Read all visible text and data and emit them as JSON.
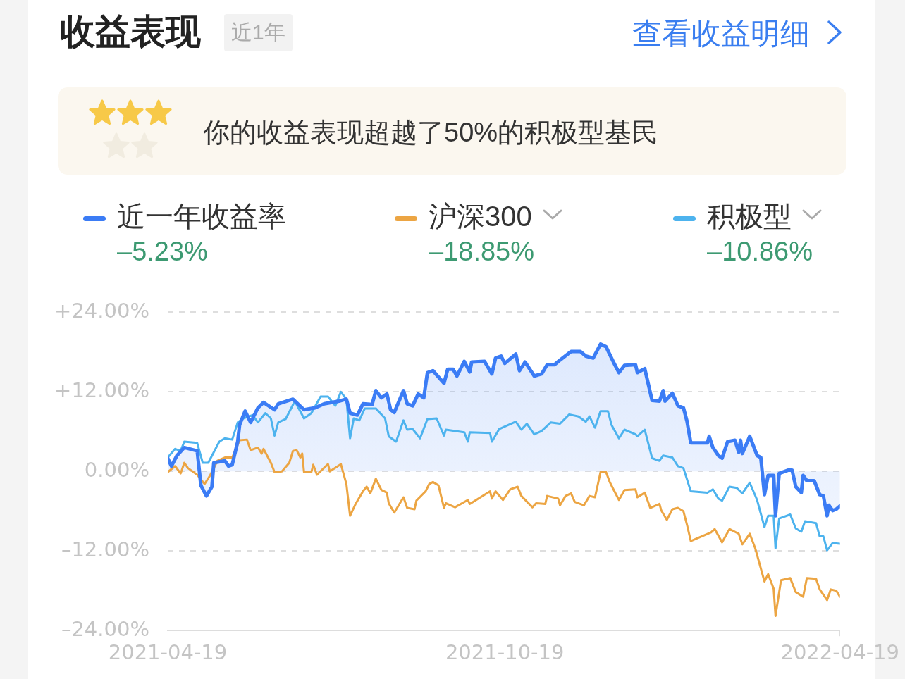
{
  "chart_data": {
    "type": "line",
    "title": "收益表现",
    "subtitle": "近1年",
    "annotations": [
      "查看收益明细",
      "你的收益表现超越了50%的积极型基民",
      "–5.23%",
      "–18.85%",
      "–10.86%"
    ],
    "xlim": [
      "2021-04-19",
      "2022-04-19"
    ],
    "xticks": [
      "2021-04-19",
      "2021-10-19",
      "2022-04-19"
    ],
    "ylim": [
      -24,
      24
    ],
    "yticks": [
      {
        "value": 24,
        "label": "+24.00%"
      },
      {
        "value": 12,
        "label": "+12.00%"
      },
      {
        "value": 0,
        "label": "0.00%"
      },
      {
        "value": -12,
        "label": "–12.00%"
      },
      {
        "value": -24,
        "label": "–24.00%"
      }
    ],
    "grid": "y",
    "legend": "top",
    "marker": "none",
    "line_style": "solid",
    "series": [
      {
        "name": "近一年收益率",
        "type": "area",
        "color": "#3b7cf5",
        "x": [
          "2021-04-19",
          "2021-04-21",
          "2021-04-24",
          "2021-04-28",
          "2021-05-05",
          "2021-05-07",
          "2021-05-10",
          "2021-05-13",
          "2021-05-14",
          "2021-05-20",
          "2021-05-22",
          "2021-05-24",
          "2021-05-27",
          "2021-05-28",
          "2021-05-31",
          "2021-06-03",
          "2021-06-07",
          "2021-06-10",
          "2021-06-16",
          "2021-06-18",
          "2021-06-26",
          "2021-07-02",
          "2021-07-08",
          "2021-07-13",
          "2021-07-21",
          "2021-07-25",
          "2021-07-27",
          "2021-07-31",
          "2021-08-03",
          "2021-08-08",
          "2021-08-10",
          "2021-08-13",
          "2021-08-16",
          "2021-08-18",
          "2021-08-20",
          "2021-08-25",
          "2021-08-27",
          "2021-08-30",
          "2021-09-02",
          "2021-09-05",
          "2021-09-07",
          "2021-09-10",
          "2021-09-16",
          "2021-09-18",
          "2021-09-21",
          "2021-09-23",
          "2021-09-27",
          "2021-09-30",
          "2021-10-01",
          "2021-10-08",
          "2021-10-12",
          "2021-10-14",
          "2021-10-17",
          "2021-10-19",
          "2021-10-25",
          "2021-10-27",
          "2021-10-30",
          "2021-11-04",
          "2021-11-08",
          "2021-11-11",
          "2021-11-15",
          "2021-11-18",
          "2021-11-24",
          "2021-11-29",
          "2021-12-02",
          "2021-12-06",
          "2021-12-10",
          "2021-12-13",
          "2021-12-17",
          "2021-12-20",
          "2021-12-23",
          "2021-12-29",
          "2021-12-30",
          "2022-01-03",
          "2022-01-07",
          "2022-01-11",
          "2022-01-13",
          "2022-01-14",
          "2022-01-18",
          "2022-01-21",
          "2022-01-24",
          "2022-01-26",
          "2022-01-28",
          "2022-02-06",
          "2022-02-07",
          "2022-02-09",
          "2022-02-12",
          "2022-02-14",
          "2022-02-17",
          "2022-02-21",
          "2022-02-23",
          "2022-02-24",
          "2022-02-25",
          "2022-03-01",
          "2022-03-05",
          "2022-03-07",
          "2022-03-09",
          "2022-03-11",
          "2022-03-14",
          "2022-03-15",
          "2022-03-17",
          "2022-03-22",
          "2022-03-24",
          "2022-03-26",
          "2022-03-29",
          "2022-03-30",
          "2022-04-01",
          "2022-04-05",
          "2022-04-08",
          "2022-04-10",
          "2022-04-12",
          "2022-04-13",
          "2022-04-15",
          "2022-04-17",
          "2022-04-19"
        ],
        "values": [
          2.0,
          0.8,
          2.4,
          3.6,
          3.1,
          -2.1,
          -3.7,
          -2.3,
          1.3,
          1.6,
          0.8,
          1.0,
          4.5,
          7.0,
          9.1,
          7.4,
          9.6,
          10.4,
          9.3,
          10.2,
          10.9,
          9.3,
          9.6,
          10.2,
          10.6,
          10.9,
          8.8,
          8.5,
          10.2,
          10.1,
          12.2,
          11.1,
          11.7,
          9.3,
          8.9,
          12.2,
          10.2,
          9.9,
          11.7,
          11.1,
          14.9,
          15.2,
          13.3,
          15.4,
          15.4,
          14.4,
          16.6,
          15.0,
          16.5,
          16.6,
          14.7,
          17.1,
          17.4,
          16.3,
          17.7,
          15.2,
          16.5,
          14.4,
          14.7,
          16.1,
          16.1,
          16.8,
          18.1,
          18.1,
          17.4,
          17.1,
          19.2,
          18.8,
          16.5,
          14.9,
          16.0,
          16.1,
          14.9,
          15.5,
          10.7,
          10.6,
          12.2,
          10.6,
          11.8,
          9.9,
          9.6,
          7.5,
          4.3,
          4.3,
          5.3,
          3.6,
          2.4,
          2.0,
          4.5,
          4.7,
          2.9,
          4.7,
          2.7,
          5.3,
          2.4,
          2.1,
          -3.5,
          -0.6,
          -0.6,
          -6.7,
          -0.3,
          0.2,
          0.2,
          -2.3,
          -3.2,
          -0.6,
          -1.4,
          -1.4,
          -3.5,
          -3.7,
          -6.7,
          -5.1,
          -5.9,
          -5.7,
          -5.2
        ]
      },
      {
        "name": "沪深300",
        "color": "#eca543",
        "x": [
          "2021-04-19",
          "2021-04-23",
          "2021-04-26",
          "2021-04-28",
          "2021-04-30",
          "2021-05-05",
          "2021-05-09",
          "2021-05-12",
          "2021-05-16",
          "2021-05-20",
          "2021-05-24",
          "2021-05-28",
          "2021-06-01",
          "2021-06-03",
          "2021-06-07",
          "2021-06-09",
          "2021-06-10",
          "2021-06-14",
          "2021-06-16",
          "2021-06-20",
          "2021-06-24",
          "2021-06-26",
          "2021-06-28",
          "2021-06-30",
          "2021-07-01",
          "2021-07-02",
          "2021-07-06",
          "2021-07-07",
          "2021-07-09",
          "2021-07-15",
          "2021-07-16",
          "2021-07-22",
          "2021-07-25",
          "2021-07-27",
          "2021-07-30",
          "2021-08-03",
          "2021-08-05",
          "2021-08-07",
          "2021-08-10",
          "2021-08-13",
          "2021-08-16",
          "2021-08-17",
          "2021-08-20",
          "2021-08-25",
          "2021-08-27",
          "2021-08-31",
          "2021-09-01",
          "2021-09-06",
          "2021-09-08",
          "2021-09-10",
          "2021-09-13",
          "2021-09-16",
          "2021-09-17",
          "2021-09-22",
          "2021-09-29",
          "2021-09-30",
          "2021-10-11",
          "2021-10-12",
          "2021-10-14",
          "2021-10-18",
          "2021-10-22",
          "2021-10-26",
          "2021-10-28",
          "2021-11-03",
          "2021-11-05",
          "2021-11-10",
          "2021-11-11",
          "2021-11-17",
          "2021-11-18",
          "2021-11-21",
          "2021-11-24",
          "2021-11-26",
          "2021-12-01",
          "2021-12-04",
          "2021-12-07",
          "2021-12-10",
          "2021-12-13",
          "2021-12-15",
          "2021-12-17",
          "2021-12-20",
          "2021-12-23",
          "2021-12-29",
          "2021-12-30",
          "2022-01-03",
          "2022-01-06",
          "2022-01-11",
          "2022-01-12",
          "2022-01-15",
          "2022-01-18",
          "2022-01-21",
          "2022-01-24",
          "2022-01-26",
          "2022-01-28",
          "2022-02-08",
          "2022-02-10",
          "2022-02-14",
          "2022-02-18",
          "2022-02-23",
          "2022-02-25",
          "2022-03-01",
          "2022-03-04",
          "2022-03-09",
          "2022-03-11",
          "2022-03-14",
          "2022-03-15",
          "2022-03-18",
          "2022-03-23",
          "2022-03-26",
          "2022-03-30",
          "2022-04-01",
          "2022-04-06",
          "2022-04-08",
          "2022-04-12",
          "2022-04-14",
          "2022-04-17",
          "2022-04-19"
        ],
        "values": [
          -0.1,
          0.8,
          -0.3,
          1.3,
          0.5,
          -0.5,
          -1.9,
          -0.6,
          1.6,
          2.1,
          2.1,
          4.7,
          4.8,
          3.2,
          3.6,
          2.7,
          3.4,
          1.3,
          -0.1,
          0.0,
          1.3,
          3.1,
          3.2,
          2.1,
          2.7,
          -0.1,
          -0.1,
          1.0,
          -0.5,
          1.1,
          0.0,
          1.1,
          -1.9,
          -6.7,
          -4.9,
          -3.0,
          -2.3,
          -3.3,
          -1.1,
          -2.8,
          -3.2,
          -4.8,
          -6.2,
          -3.9,
          -5.5,
          -5.7,
          -4.4,
          -3.0,
          -1.9,
          -1.6,
          -2.1,
          -5.5,
          -4.8,
          -5.4,
          -4.3,
          -4.9,
          -3.0,
          -4.1,
          -3.0,
          -4.3,
          -2.7,
          -2.3,
          -3.7,
          -5.4,
          -4.8,
          -4.9,
          -3.7,
          -4.1,
          -5.1,
          -3.7,
          -3.3,
          -4.6,
          -5.1,
          -3.7,
          -3.9,
          -0.1,
          -0.1,
          -1.6,
          -2.7,
          -4.3,
          -2.8,
          -2.7,
          -3.9,
          -3.2,
          -5.5,
          -4.9,
          -5.9,
          -7.3,
          -5.7,
          -5.5,
          -6.0,
          -8.1,
          -10.5,
          -9.2,
          -8.7,
          -10.7,
          -8.7,
          -9.4,
          -11.0,
          -9.4,
          -11.6,
          -16.6,
          -15.5,
          -17.7,
          -21.8,
          -16.4,
          -16.1,
          -18.2,
          -18.9,
          -16.1,
          -16.2,
          -17.8,
          -19.4,
          -17.8,
          -18.0,
          -18.9
        ]
      },
      {
        "name": "积极型",
        "color": "#4db3ee",
        "x": [
          "2021-04-19",
          "2021-04-23",
          "2021-04-26",
          "2021-04-28",
          "2021-05-05",
          "2021-05-08",
          "2021-05-11",
          "2021-05-17",
          "2021-05-20",
          "2021-05-24",
          "2021-05-27",
          "2021-05-30",
          "2021-06-04",
          "2021-06-07",
          "2021-06-11",
          "2021-06-14",
          "2021-06-16",
          "2021-06-18",
          "2021-06-22",
          "2021-06-27",
          "2021-07-02",
          "2021-07-06",
          "2021-07-11",
          "2021-07-15",
          "2021-07-19",
          "2021-07-22",
          "2021-07-25",
          "2021-07-27",
          "2021-07-29",
          "2021-08-01",
          "2021-08-04",
          "2021-08-10",
          "2021-08-15",
          "2021-08-17",
          "2021-08-21",
          "2021-08-25",
          "2021-08-27",
          "2021-08-30",
          "2021-09-03",
          "2021-09-07",
          "2021-09-12",
          "2021-09-16",
          "2021-09-17",
          "2021-09-27",
          "2021-09-29",
          "2021-09-30",
          "2021-10-11",
          "2021-10-12",
          "2021-10-16",
          "2021-10-20",
          "2021-10-25",
          "2021-10-28",
          "2021-10-31",
          "2021-11-04",
          "2021-11-08",
          "2021-11-13",
          "2021-11-18",
          "2021-11-23",
          "2021-11-28",
          "2021-12-02",
          "2021-12-04",
          "2021-12-07",
          "2021-12-10",
          "2021-12-14",
          "2021-12-16",
          "2021-12-20",
          "2021-12-23",
          "2021-12-29",
          "2021-12-30",
          "2022-01-03",
          "2022-01-07",
          "2022-01-11",
          "2022-01-13",
          "2022-01-18",
          "2022-01-21",
          "2022-01-24",
          "2022-01-28",
          "2022-02-06",
          "2022-02-09",
          "2022-02-12",
          "2022-02-14",
          "2022-02-18",
          "2022-02-22",
          "2022-02-25",
          "2022-03-01",
          "2022-03-05",
          "2022-03-09",
          "2022-03-11",
          "2022-03-14",
          "2022-03-15",
          "2022-03-17",
          "2022-03-23",
          "2022-03-26",
          "2022-03-29",
          "2022-03-31",
          "2022-04-06",
          "2022-04-08",
          "2022-04-10",
          "2022-04-12",
          "2022-04-15",
          "2022-04-19"
        ],
        "values": [
          2.1,
          3.4,
          3.1,
          4.5,
          4.3,
          1.3,
          1.3,
          4.5,
          5.0,
          4.8,
          7.4,
          8.0,
          8.5,
          7.4,
          8.8,
          8.0,
          5.4,
          7.4,
          7.9,
          10.6,
          8.0,
          8.8,
          11.3,
          11.3,
          9.9,
          12.0,
          10.9,
          5.0,
          8.0,
          7.7,
          9.5,
          9.5,
          8.0,
          5.3,
          4.5,
          7.7,
          6.3,
          6.4,
          5.0,
          7.9,
          8.0,
          5.4,
          6.3,
          5.9,
          4.5,
          5.9,
          5.8,
          4.5,
          6.4,
          6.9,
          7.5,
          6.3,
          7.2,
          5.6,
          6.1,
          7.4,
          7.2,
          8.6,
          8.3,
          7.5,
          8.3,
          6.6,
          9.1,
          9.1,
          7.0,
          5.0,
          6.3,
          5.6,
          5.3,
          6.3,
          2.0,
          1.6,
          2.4,
          2.1,
          0.8,
          0.5,
          -3.0,
          -3.2,
          -2.7,
          -4.1,
          -4.4,
          -2.3,
          -2.5,
          -3.3,
          -1.7,
          -4.3,
          -8.4,
          -6.7,
          -6.7,
          -11.6,
          -7.1,
          -6.5,
          -8.6,
          -9.1,
          -7.5,
          -7.8,
          -9.8,
          -9.8,
          -11.9,
          -10.8,
          -10.9
        ]
      }
    ]
  }
}
